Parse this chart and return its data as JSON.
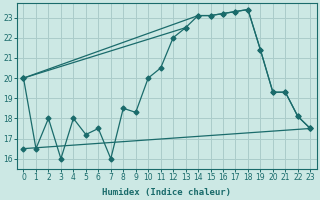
{
  "xlabel": "Humidex (Indice chaleur)",
  "bg_color": "#cce8e4",
  "grid_color": "#aaccca",
  "line_color": "#1a6b6b",
  "xlim": [
    -0.5,
    23.5
  ],
  "ylim": [
    15.5,
    23.7
  ],
  "yticks": [
    16,
    17,
    18,
    19,
    20,
    21,
    22,
    23
  ],
  "xticks": [
    0,
    1,
    2,
    3,
    4,
    5,
    6,
    7,
    8,
    9,
    10,
    11,
    12,
    13,
    14,
    15,
    16,
    17,
    18,
    19,
    20,
    21,
    22,
    23
  ],
  "series1_x": [
    0,
    1,
    2,
    3,
    4,
    5,
    6,
    7,
    8,
    9,
    10,
    11,
    12,
    13
  ],
  "series1_y": [
    20.0,
    16.5,
    18.0,
    16.0,
    18.0,
    17.2,
    17.5,
    16.0,
    18.5,
    18.3,
    20.0,
    20.5,
    22.0,
    22.5
  ],
  "series2_x": [
    0,
    14,
    15,
    16,
    17,
    18,
    19,
    20,
    21,
    22,
    23
  ],
  "series2_y": [
    20.0,
    23.1,
    23.1,
    23.2,
    23.3,
    23.4,
    21.4,
    19.3,
    19.3,
    18.1,
    17.5
  ],
  "series3_x": [
    0,
    23
  ],
  "series3_y": [
    16.5,
    17.5
  ],
  "series4_x": [
    0,
    13,
    14,
    15,
    16,
    17,
    18,
    19,
    20,
    21,
    22,
    23
  ],
  "series4_y": [
    20.0,
    22.5,
    23.1,
    23.1,
    23.2,
    23.3,
    23.4,
    21.4,
    19.3,
    19.3,
    18.1,
    17.5
  ]
}
